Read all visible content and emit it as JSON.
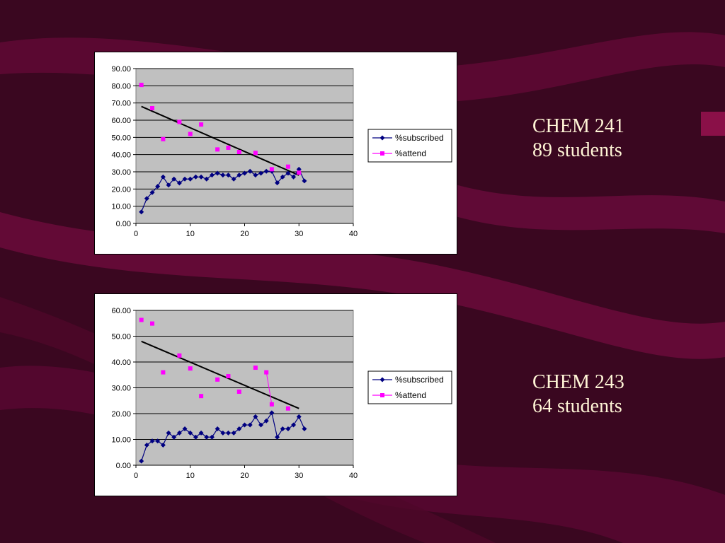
{
  "colors": {
    "background": "#3a0720",
    "band": "#6b0a3b",
    "plot_area": "#c0c0c0",
    "subscribed": "#000080",
    "attend": "#ff00ff",
    "trend": "#000000",
    "label_text": "#fff5d6"
  },
  "labels": [
    {
      "course": "CHEM 241",
      "students": "89 students"
    },
    {
      "course": "CHEM 243",
      "students": "64 students"
    }
  ],
  "chart_data": [
    {
      "type": "scatter",
      "title": "",
      "xlabel": "",
      "ylabel": "",
      "xlim": [
        0,
        40
      ],
      "ylim": [
        0,
        90
      ],
      "x_ticks": [
        "0",
        "10",
        "20",
        "30",
        "40"
      ],
      "y_ticks": [
        "0.00",
        "10.00",
        "20.00",
        "30.00",
        "40.00",
        "50.00",
        "60.00",
        "70.00",
        "80.00",
        "90.00"
      ],
      "grid": true,
      "legend": "right",
      "series": [
        {
          "name": "%subscribed",
          "mode": "line+markers",
          "x": [
            1,
            2,
            3,
            4,
            5,
            6,
            7,
            8,
            9,
            10,
            11,
            12,
            13,
            14,
            15,
            16,
            17,
            18,
            19,
            20,
            21,
            22,
            23,
            24,
            25,
            26,
            27,
            28,
            29,
            30,
            31
          ],
          "y": [
            6.7,
            14.5,
            18.0,
            21.5,
            27.0,
            22.3,
            25.8,
            23.5,
            25.8,
            25.8,
            27.0,
            27.0,
            25.8,
            28.1,
            29.2,
            28.1,
            28.1,
            25.8,
            28.1,
            29.2,
            30.3,
            28.1,
            29.2,
            30.3,
            30.3,
            23.6,
            27.0,
            29.2,
            27.0,
            31.5,
            24.7
          ]
        },
        {
          "name": "%attend",
          "mode": "markers",
          "x": [
            1,
            3,
            5,
            8,
            10,
            12,
            15,
            17,
            19,
            22,
            25,
            28,
            30
          ],
          "y": [
            80.5,
            67.0,
            49.0,
            59.0,
            52.0,
            57.5,
            43.0,
            44.0,
            41.5,
            41.0,
            31.5,
            33.0,
            29.5
          ]
        },
        {
          "name": "",
          "mode": "trendline",
          "x": [
            1,
            30
          ],
          "y": [
            68.0,
            28.0
          ]
        }
      ]
    },
    {
      "type": "scatter",
      "title": "",
      "xlabel": "",
      "ylabel": "",
      "xlim": [
        0,
        40
      ],
      "ylim": [
        0,
        60
      ],
      "x_ticks": [
        "0",
        "10",
        "20",
        "30",
        "40"
      ],
      "y_ticks": [
        "0.00",
        "10.00",
        "20.00",
        "30.00",
        "40.00",
        "50.00",
        "60.00"
      ],
      "grid": true,
      "legend": "right",
      "series": [
        {
          "name": "%subscribed",
          "mode": "line+markers",
          "x": [
            1,
            2,
            3,
            4,
            5,
            6,
            7,
            8,
            9,
            10,
            11,
            12,
            13,
            14,
            15,
            16,
            17,
            18,
            19,
            20,
            21,
            22,
            23,
            24,
            25,
            26,
            27,
            28,
            29,
            30,
            31
          ],
          "y": [
            1.6,
            7.8,
            9.4,
            9.4,
            7.8,
            12.5,
            10.9,
            12.5,
            14.1,
            12.5,
            10.9,
            12.5,
            10.9,
            10.9,
            14.1,
            12.5,
            12.5,
            12.5,
            14.1,
            15.6,
            15.6,
            18.8,
            15.6,
            17.2,
            20.3,
            10.9,
            14.1,
            14.1,
            15.6,
            18.8,
            14.1
          ]
        },
        {
          "name": "%attend",
          "mode": "markers+connector",
          "x": [
            1,
            3,
            5,
            8,
            10,
            12,
            15,
            17,
            19,
            22,
            24,
            25,
            28
          ],
          "y": [
            56.3,
            54.9,
            36.0,
            42.5,
            37.5,
            26.8,
            33.2,
            34.5,
            28.5,
            37.8,
            36.0,
            23.6,
            22.0
          ]
        },
        {
          "name": "",
          "mode": "trendline",
          "x": [
            1,
            30
          ],
          "y": [
            48.0,
            22.0
          ]
        }
      ]
    }
  ]
}
